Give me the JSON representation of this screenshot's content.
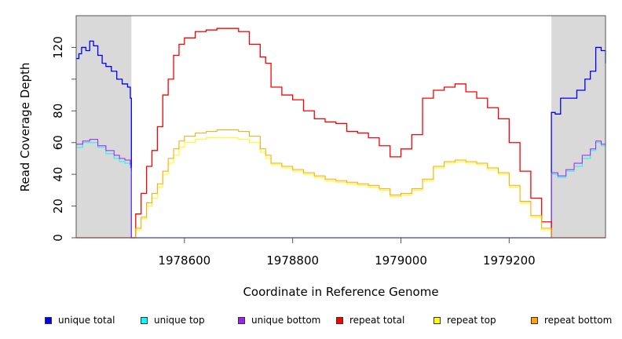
{
  "chart_data": {
    "type": "line",
    "xlabel": "Coordinate in Reference Genome",
    "ylabel": "Read Coverage Depth",
    "xlim": [
      1978400,
      1979378
    ],
    "ylim": [
      0,
      140
    ],
    "x_ticks": [
      1978600,
      1978800,
      1979000,
      1979200
    ],
    "x_tick_labels": [
      "1978600",
      "1978800",
      "1979000",
      "1979200"
    ],
    "y_ticks": [
      0,
      20,
      40,
      60,
      80,
      100,
      120
    ],
    "y_tick_labels": [
      "0",
      "20",
      "40",
      "60",
      "80",
      "",
      "120"
    ],
    "shaded_regions": [
      [
        1978400,
        1978502
      ],
      [
        1979278,
        1979378
      ]
    ],
    "legend_placement": "bottom",
    "series": [
      {
        "name": "unique total",
        "color": "#0000ff",
        "x": [
          1978400,
          1978405,
          1978410,
          1978418,
          1978425,
          1978432,
          1978440,
          1978448,
          1978455,
          1978465,
          1978475,
          1978485,
          1978495,
          1978500,
          1978501,
          1978502,
          1979277,
          1979278,
          1979285,
          1979295,
          1979310,
          1979325,
          1979340,
          1979350,
          1979360,
          1979370,
          1979378
        ],
        "y": [
          113,
          116,
          120,
          118,
          124,
          121,
          115,
          110,
          108,
          105,
          100,
          97,
          95,
          88,
          88,
          0,
          0,
          79,
          78,
          88,
          88,
          93,
          100,
          105,
          120,
          118,
          110
        ]
      },
      {
        "name": "unique top",
        "color": "#00ffff",
        "x": [
          1978400,
          1978412,
          1978425,
          1978440,
          1978455,
          1978470,
          1978480,
          1978490,
          1978500,
          1978501,
          1978502,
          1979277,
          1979278,
          1979290,
          1979305,
          1979320,
          1979335,
          1979350,
          1979360,
          1979370,
          1979378
        ],
        "y": [
          57,
          60,
          60,
          57,
          53,
          50,
          48,
          47,
          44,
          42,
          0,
          0,
          40,
          38,
          42,
          45,
          50,
          55,
          60,
          58,
          55
        ]
      },
      {
        "name": "unique bottom",
        "color": "#a020f0",
        "x": [
          1978400,
          1978412,
          1978425,
          1978440,
          1978455,
          1978470,
          1978480,
          1978490,
          1978500,
          1978501,
          1978502,
          1979277,
          1979278,
          1979290,
          1979305,
          1979320,
          1979335,
          1979350,
          1979360,
          1979370,
          1979378
        ],
        "y": [
          59,
          61,
          62,
          58,
          55,
          52,
          50,
          49,
          46,
          44,
          0,
          0,
          41,
          39,
          43,
          47,
          52,
          56,
          61,
          59,
          56
        ]
      },
      {
        "name": "repeat total",
        "color": "#ff0000",
        "x": [
          1978400,
          1978502,
          1978510,
          1978520,
          1978530,
          1978540,
          1978550,
          1978560,
          1978570,
          1978580,
          1978590,
          1978600,
          1978620,
          1978640,
          1978660,
          1978680,
          1978700,
          1978720,
          1978740,
          1978750,
          1978760,
          1978780,
          1978800,
          1978820,
          1978840,
          1978860,
          1978880,
          1978900,
          1978920,
          1978940,
          1978960,
          1978980,
          1979000,
          1979020,
          1979040,
          1979060,
          1979080,
          1979100,
          1979120,
          1979140,
          1979160,
          1979180,
          1979200,
          1979220,
          1979240,
          1979260,
          1979278,
          1979378
        ],
        "y": [
          0,
          0,
          15,
          28,
          45,
          55,
          70,
          90,
          100,
          115,
          122,
          126,
          130,
          131,
          132,
          132,
          130,
          122,
          114,
          110,
          95,
          90,
          87,
          80,
          75,
          73,
          72,
          67,
          66,
          63,
          58,
          51,
          56,
          65,
          88,
          93,
          95,
          97,
          92,
          88,
          82,
          75,
          60,
          42,
          25,
          10,
          0,
          0
        ]
      },
      {
        "name": "repeat top",
        "color": "#ffff00",
        "x": [
          1978400,
          1978502,
          1978510,
          1978520,
          1978530,
          1978540,
          1978550,
          1978560,
          1978570,
          1978580,
          1978590,
          1978600,
          1978620,
          1978640,
          1978660,
          1978680,
          1978700,
          1978720,
          1978740,
          1978750,
          1978760,
          1978780,
          1978800,
          1978820,
          1978840,
          1978860,
          1978880,
          1978900,
          1978920,
          1978940,
          1978960,
          1978980,
          1979000,
          1979020,
          1979040,
          1979060,
          1979080,
          1979100,
          1979120,
          1979140,
          1979160,
          1979180,
          1979200,
          1979220,
          1979240,
          1979260,
          1979278,
          1979378
        ],
        "y": [
          0,
          0,
          5,
          12,
          20,
          25,
          32,
          40,
          47,
          52,
          57,
          60,
          62,
          63,
          63,
          63,
          62,
          60,
          54,
          50,
          46,
          44,
          42,
          40,
          38,
          36,
          35,
          34,
          33,
          32,
          30,
          26,
          27,
          30,
          36,
          44,
          47,
          48,
          47,
          46,
          43,
          40,
          32,
          22,
          13,
          5,
          0,
          0
        ]
      },
      {
        "name": "repeat bottom",
        "color": "#ffa500",
        "x": [
          1978400,
          1978502,
          1978510,
          1978520,
          1978530,
          1978540,
          1978550,
          1978560,
          1978570,
          1978580,
          1978590,
          1978600,
          1978620,
          1978640,
          1978660,
          1978680,
          1978700,
          1978720,
          1978740,
          1978750,
          1978760,
          1978780,
          1978800,
          1978820,
          1978840,
          1978860,
          1978880,
          1978900,
          1978920,
          1978940,
          1978960,
          1978980,
          1979000,
          1979020,
          1979040,
          1979060,
          1979080,
          1979100,
          1979120,
          1979140,
          1979160,
          1979180,
          1979200,
          1979220,
          1979240,
          1979260,
          1979278,
          1979378
        ],
        "y": [
          0,
          0,
          6,
          13,
          22,
          28,
          34,
          42,
          50,
          56,
          61,
          64,
          66,
          67,
          68,
          68,
          67,
          64,
          56,
          52,
          47,
          45,
          43,
          41,
          39,
          37,
          36,
          35,
          34,
          33,
          31,
          27,
          28,
          31,
          37,
          45,
          48,
          49,
          48,
          47,
          44,
          41,
          33,
          23,
          14,
          6,
          0,
          0
        ]
      }
    ]
  }
}
